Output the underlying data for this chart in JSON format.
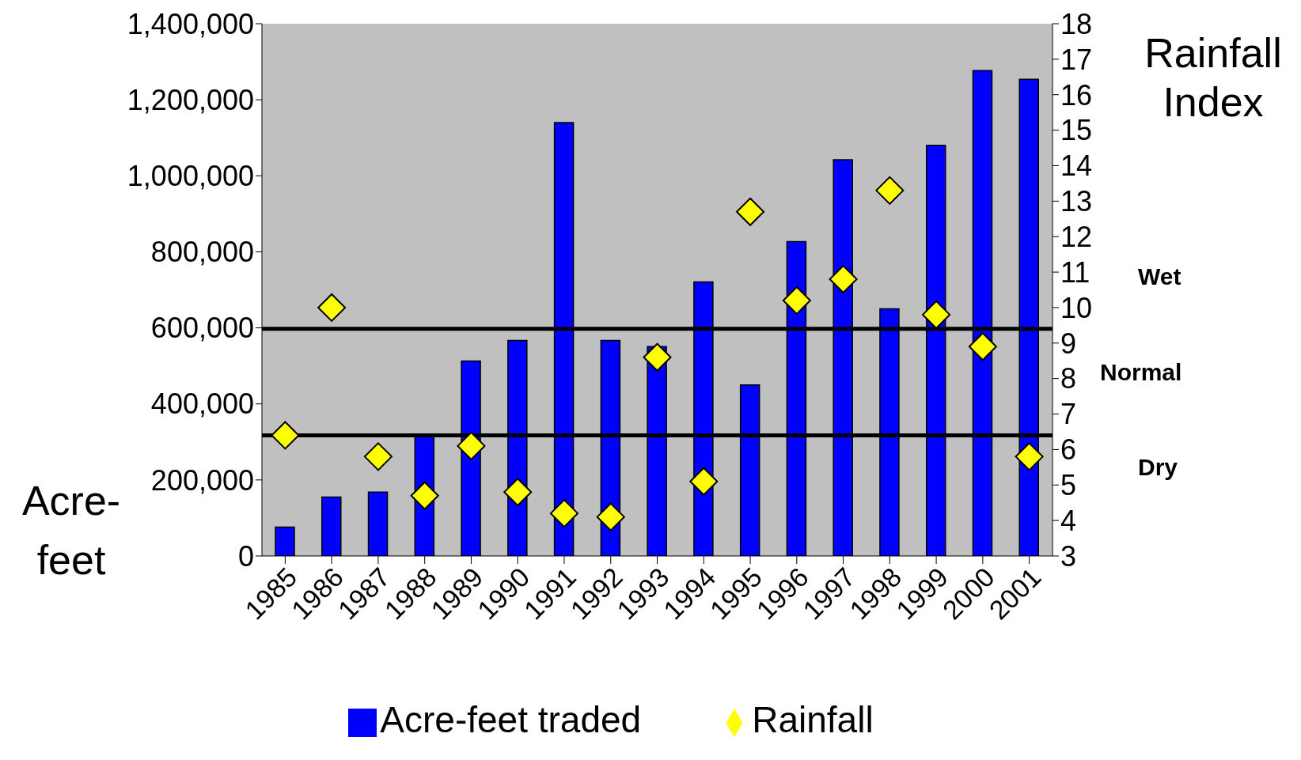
{
  "chart_data": {
    "type": "bar",
    "categories": [
      "1985",
      "1986",
      "1987",
      "1988",
      "1989",
      "1990",
      "1991",
      "1992",
      "1993",
      "1994",
      "1995",
      "1996",
      "1997",
      "1998",
      "1999",
      "2000",
      "2001"
    ],
    "series": [
      {
        "name": "Acre-feet traded",
        "color": "#0000ff",
        "values": [
          76000,
          155000,
          168000,
          320000,
          513000,
          567000,
          1140000,
          567000,
          551000,
          721000,
          450000,
          827000,
          1042000,
          650000,
          1080000,
          1277000,
          1254000
        ]
      },
      {
        "name": "Rainfall",
        "type": "scatter",
        "axis": "y2",
        "color": "#ffff00",
        "values": [
          6.4,
          10.0,
          5.8,
          4.7,
          6.1,
          4.8,
          4.2,
          4.1,
          8.6,
          5.1,
          12.7,
          10.2,
          10.8,
          13.3,
          9.8,
          8.9,
          5.8
        ]
      }
    ],
    "ylabel": "Acre-feet",
    "y2label": "Rainfall Index",
    "ylim": [
      0,
      1400000
    ],
    "yticks": [
      0,
      {
        "value": 200000,
        "label": "200,000"
      },
      {
        "value": 400000,
        "label": "400,000"
      },
      {
        "value": 600000,
        "label": "600,000"
      },
      {
        "value": 800000,
        "label": "800,000"
      },
      {
        "value": 1000000,
        "label": "1,000,000"
      },
      {
        "value": 1200000,
        "label": "1,200,000"
      },
      {
        "value": 1400000,
        "label": "1,400,000"
      }
    ],
    "y2lim": [
      3,
      18
    ],
    "y2ticks": [
      3,
      4,
      5,
      6,
      7,
      8,
      9,
      10,
      11,
      12,
      13,
      14,
      15,
      16,
      17,
      18
    ],
    "ref_lines": [
      {
        "axis": "y2",
        "value": 9.4,
        "color": "#000000"
      },
      {
        "axis": "y2",
        "value": 6.4,
        "color": "#000000"
      }
    ],
    "annotations": [
      "Wet",
      "Normal",
      "Dry"
    ],
    "marker": "diamond",
    "grid": false,
    "legend": "bottom"
  }
}
